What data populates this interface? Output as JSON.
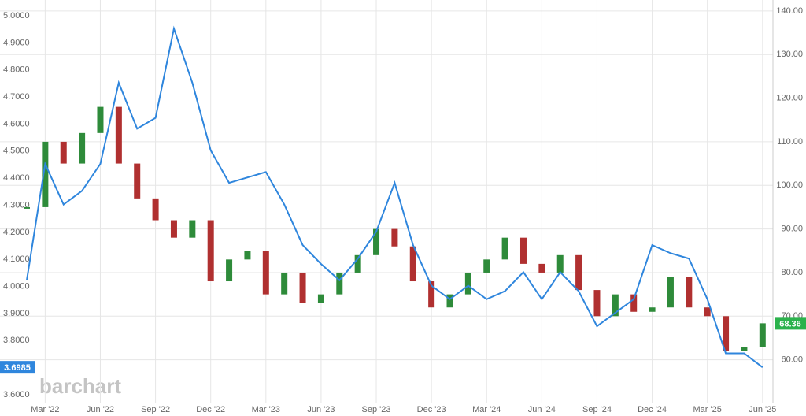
{
  "chart_data": {
    "type": "line",
    "watermark": "barchart",
    "x": [
      "2022-02",
      "2022-03",
      "2022-04",
      "2022-05",
      "2022-06",
      "2022-07",
      "2022-08",
      "2022-09",
      "2022-10",
      "2022-11",
      "2022-12",
      "2023-01",
      "2023-02",
      "2023-03",
      "2023-04",
      "2023-05",
      "2023-06",
      "2023-07",
      "2023-08",
      "2023-09",
      "2023-10",
      "2023-11",
      "2023-12",
      "2024-01",
      "2024-02",
      "2024-03",
      "2024-04",
      "2024-05",
      "2024-06",
      "2024-07",
      "2024-08",
      "2024-09",
      "2024-10",
      "2024-11",
      "2024-12",
      "2025-01",
      "2025-02",
      "2025-03",
      "2025-04",
      "2025-05",
      "2025-06"
    ],
    "xticks": [
      {
        "value": "2022-03",
        "label": "Mar '22"
      },
      {
        "value": "2022-06",
        "label": "Jun '22"
      },
      {
        "value": "2022-09",
        "label": "Sep '22"
      },
      {
        "value": "2022-12",
        "label": "Dec '22"
      },
      {
        "value": "2023-03",
        "label": "Mar '23"
      },
      {
        "value": "2023-06",
        "label": "Jun '23"
      },
      {
        "value": "2023-09",
        "label": "Sep '23"
      },
      {
        "value": "2023-12",
        "label": "Dec '23"
      },
      {
        "value": "2024-03",
        "label": "Mar '24"
      },
      {
        "value": "2024-06",
        "label": "Jun '24"
      },
      {
        "value": "2024-09",
        "label": "Sep '24"
      },
      {
        "value": "2024-12",
        "label": "Dec '24"
      },
      {
        "value": "2025-03",
        "label": "Mar '25"
      },
      {
        "value": "2025-06",
        "label": "Jun '25"
      }
    ],
    "ylim": [
      3.565,
      5.041
    ],
    "yticks": [
      {
        "value": 3.6,
        "label": "3.6000"
      },
      {
        "value": 3.8,
        "label": "3.8000"
      },
      {
        "value": 3.9,
        "label": "3.9000"
      },
      {
        "value": 4,
        "label": "4.0000"
      },
      {
        "value": 4.1,
        "label": "4.1000"
      },
      {
        "value": 4.2,
        "label": "4.2000"
      },
      {
        "value": 4.3,
        "label": "4.3000"
      },
      {
        "value": 4.4,
        "label": "4.4000"
      },
      {
        "value": 4.5,
        "label": "4.5000"
      },
      {
        "value": 4.6,
        "label": "4.6000"
      },
      {
        "value": 4.7,
        "label": "4.7000"
      },
      {
        "value": 4.8,
        "label": "4.8000"
      },
      {
        "value": 4.9,
        "label": "4.9000"
      },
      {
        "value": 5,
        "label": "5.0000"
      }
    ],
    "y2lim": [
      50,
      141.6
    ],
    "y2ticks": [
      {
        "value": 60,
        "label": "60.00"
      },
      {
        "value": 70,
        "label": "70.00"
      },
      {
        "value": 80,
        "label": "80.00"
      },
      {
        "value": 90,
        "label": "90.00"
      },
      {
        "value": 100,
        "label": "100.00"
      },
      {
        "value": 110,
        "label": "110.00"
      },
      {
        "value": 120,
        "label": "120.00"
      },
      {
        "value": 130,
        "label": "130.00"
      },
      {
        "value": 140,
        "label": "140.00"
      }
    ],
    "grid": true,
    "series": [
      {
        "color": "#2f86dd",
        "style": "line",
        "last_label": "3.6985",
        "values": [
          4.02,
          4.45,
          4.3,
          4.35,
          4.45,
          4.75,
          4.58,
          4.62,
          4.95,
          4.75,
          4.5,
          4.38,
          4.4,
          4.42,
          4.3,
          4.15,
          4.08,
          4.02,
          4.1,
          4.2,
          4.38,
          4.15,
          4.0,
          3.95,
          4.0,
          3.95,
          3.98,
          4.05,
          3.95,
          4.05,
          3.98,
          3.85,
          3.9,
          3.95,
          4.15,
          4.12,
          4.1,
          3.95,
          3.75,
          3.75,
          3.6985
        ]
      },
      {
        "axis": "y2",
        "style": "bars",
        "color": "#2e8b3a",
        "down_color": "#b03030",
        "badge_color": "#2bb24c",
        "last_label": "68.36",
        "values": [
          95,
          110,
          105,
          112,
          118,
          105,
          97,
          92,
          88,
          92,
          78,
          83,
          85,
          75,
          80,
          73,
          75,
          80,
          84,
          90,
          86,
          78,
          72,
          75,
          80,
          83,
          88,
          82,
          80,
          84,
          76,
          70,
          75,
          71,
          72,
          79,
          72,
          70,
          62,
          63,
          68.36
        ]
      }
    ]
  }
}
